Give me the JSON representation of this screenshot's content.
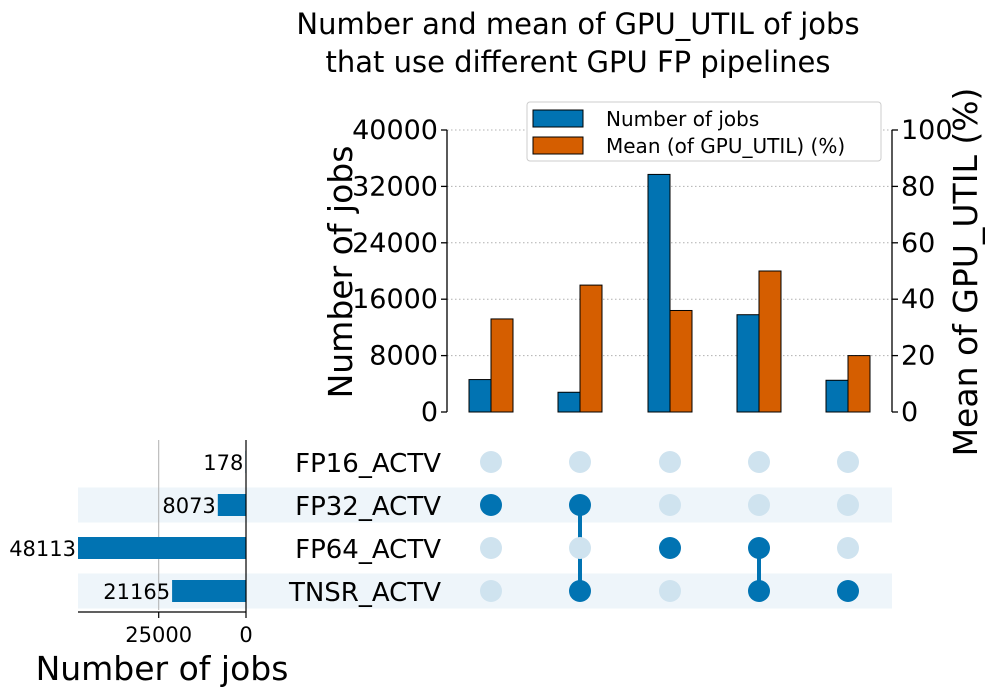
{
  "chart_data": {
    "type": "upset",
    "title": [
      "Number and mean of GPU_UTIL of jobs",
      "that use different GPU FP pipelines"
    ],
    "intersections": {
      "ylabel_left": "Number of jobs",
      "ylabel_right": "Mean of GPU_UTIL (%)",
      "ylim_left": [
        0,
        40000
      ],
      "yticks_left": [
        0,
        8000,
        16000,
        24000,
        32000,
        40000
      ],
      "ylim_right": [
        0,
        100
      ],
      "yticks_right": [
        0,
        20,
        40,
        60,
        80,
        100
      ],
      "series": [
        {
          "name": "Number of jobs",
          "color": "#0173b2",
          "axis": "left",
          "values": [
            4600,
            2800,
            33700,
            13800,
            4500
          ]
        },
        {
          "name": "Mean (of GPU_UTIL) (%)",
          "color": "#d55e00",
          "axis": "right",
          "values": [
            33,
            45,
            36,
            50,
            20
          ]
        }
      ],
      "legend_position": "top-right",
      "grid": true
    },
    "sets": {
      "labels": [
        "FP16_ACTV",
        "FP32_ACTV",
        "FP64_ACTV",
        "TNSR_ACTV"
      ],
      "sizes": [
        178,
        8073,
        48113,
        21165
      ],
      "size_labels": [
        "178",
        "8073",
        "48113",
        "21165"
      ],
      "xlabel": "Number of jobs",
      "xticks": [
        25000,
        0
      ],
      "xlim": [
        48113,
        0
      ]
    },
    "matrix": {
      "columns": [
        [
          false,
          true,
          false,
          false
        ],
        [
          false,
          true,
          false,
          true
        ],
        [
          false,
          false,
          true,
          false
        ],
        [
          false,
          false,
          true,
          true
        ],
        [
          false,
          false,
          false,
          true
        ]
      ],
      "active_color": "#0173b2",
      "inactive_color": "#cfe3ef",
      "stripe_color": "#eef5fa"
    }
  }
}
